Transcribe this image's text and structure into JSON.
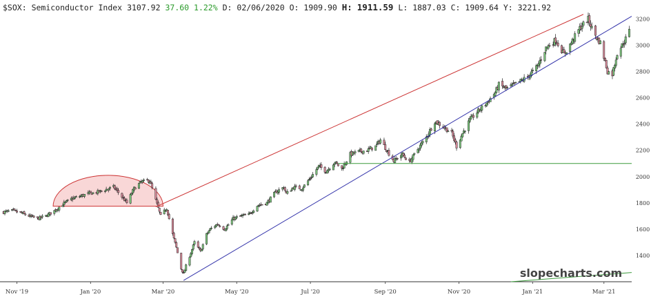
{
  "header": {
    "symbol": "$SOX:",
    "name": "Semiconductor Index",
    "last": "3107.92",
    "change": "37.60",
    "change_pct": "1.22%",
    "date_label": "D:",
    "date": "02/06/2020",
    "open_label": "O:",
    "open": "1909.90",
    "high_label": "H:",
    "high": "1911.59",
    "low_label": "L:",
    "low": "1887.03",
    "close_label": "C:",
    "close": "1909.64",
    "y_label": "Y:",
    "y_value": "3221.92"
  },
  "watermark": "slopecharts.com",
  "colors": {
    "up_candle": "#7ec87e",
    "down_candle": "#d98a9a",
    "upper_trend": "#cc3333",
    "lower_trend": "#3333aa",
    "support": "#3a9a3a",
    "ellipse_fill": "#f7c9c9",
    "ellipse_stroke": "#cc3333"
  },
  "chart_data": {
    "type": "candlestick",
    "x_range": [
      "2019-10-18",
      "2021-03-24"
    ],
    "ylim": [
      1200,
      3260
    ],
    "y_ticks": [
      1400,
      1600,
      1800,
      2000,
      2200,
      2400,
      2600,
      2800,
      3000,
      3200
    ],
    "x_ticks": [
      {
        "label": "Nov '19",
        "date": "2019-11-01"
      },
      {
        "label": "Jan '20",
        "date": "2020-01-01"
      },
      {
        "label": "Mar '20",
        "date": "2020-03-01"
      },
      {
        "label": "May '20",
        "date": "2020-05-01"
      },
      {
        "label": "Jul '20",
        "date": "2020-07-01"
      },
      {
        "label": "Sep '20",
        "date": "2020-09-01"
      },
      {
        "label": "Nov '20",
        "date": "2020-11-01"
      },
      {
        "label": "Jan '21",
        "date": "2021-01-01"
      },
      {
        "label": "Mar '21",
        "date": "2021-03-01"
      }
    ],
    "close_path": [
      [
        "2019-10-21",
        1730
      ],
      [
        "2019-10-28",
        1740
      ],
      [
        "2019-11-04",
        1725
      ],
      [
        "2019-11-11",
        1700
      ],
      [
        "2019-11-18",
        1680
      ],
      [
        "2019-11-25",
        1700
      ],
      [
        "2019-12-02",
        1740
      ],
      [
        "2019-12-09",
        1790
      ],
      [
        "2019-12-16",
        1830
      ],
      [
        "2019-12-23",
        1850
      ],
      [
        "2019-12-30",
        1870
      ],
      [
        "2020-01-06",
        1880
      ],
      [
        "2020-01-13",
        1900
      ],
      [
        "2020-01-20",
        1920
      ],
      [
        "2020-01-24",
        1880
      ],
      [
        "2020-01-31",
        1800
      ],
      [
        "2020-02-06",
        1910
      ],
      [
        "2020-02-12",
        1960
      ],
      [
        "2020-02-19",
        1970
      ],
      [
        "2020-02-24",
        1820
      ],
      [
        "2020-02-28",
        1700
      ],
      [
        "2020-03-04",
        1760
      ],
      [
        "2020-03-09",
        1560
      ],
      [
        "2020-03-12",
        1460
      ],
      [
        "2020-03-16",
        1300
      ],
      [
        "2020-03-18",
        1260
      ],
      [
        "2020-03-20",
        1320
      ],
      [
        "2020-03-24",
        1420
      ],
      [
        "2020-03-27",
        1500
      ],
      [
        "2020-04-01",
        1430
      ],
      [
        "2020-04-06",
        1560
      ],
      [
        "2020-04-09",
        1600
      ],
      [
        "2020-04-15",
        1640
      ],
      [
        "2020-04-21",
        1600
      ],
      [
        "2020-04-28",
        1680
      ],
      [
        "2020-05-04",
        1700
      ],
      [
        "2020-05-11",
        1710
      ],
      [
        "2020-05-18",
        1780
      ],
      [
        "2020-05-26",
        1800
      ],
      [
        "2020-06-02",
        1880
      ],
      [
        "2020-06-09",
        1920
      ],
      [
        "2020-06-11",
        1870
      ],
      [
        "2020-06-17",
        1920
      ],
      [
        "2020-06-24",
        1910
      ],
      [
        "2020-07-01",
        1990
      ],
      [
        "2020-07-08",
        2080
      ],
      [
        "2020-07-14",
        2040
      ],
      [
        "2020-07-21",
        2110
      ],
      [
        "2020-07-27",
        2060
      ],
      [
        "2020-08-03",
        2170
      ],
      [
        "2020-08-10",
        2190
      ],
      [
        "2020-08-17",
        2200
      ],
      [
        "2020-08-24",
        2230
      ],
      [
        "2020-08-28",
        2280
      ],
      [
        "2020-09-03",
        2190
      ],
      [
        "2020-09-08",
        2120
      ],
      [
        "2020-09-15",
        2170
      ],
      [
        "2020-09-21",
        2110
      ],
      [
        "2020-09-28",
        2210
      ],
      [
        "2020-10-05",
        2300
      ],
      [
        "2020-10-12",
        2420
      ],
      [
        "2020-10-19",
        2380
      ],
      [
        "2020-10-26",
        2330
      ],
      [
        "2020-10-30",
        2230
      ],
      [
        "2020-11-04",
        2330
      ],
      [
        "2020-11-10",
        2430
      ],
      [
        "2020-11-17",
        2500
      ],
      [
        "2020-11-24",
        2560
      ],
      [
        "2020-12-01",
        2640
      ],
      [
        "2020-12-04",
        2700
      ],
      [
        "2020-12-10",
        2670
      ],
      [
        "2020-12-17",
        2700
      ],
      [
        "2020-12-28",
        2760
      ],
      [
        "2021-01-05",
        2840
      ],
      [
        "2021-01-12",
        2980
      ],
      [
        "2021-01-20",
        3040
      ],
      [
        "2021-01-27",
        2930
      ],
      [
        "2021-02-02",
        3020
      ],
      [
        "2021-02-09",
        3130
      ],
      [
        "2021-02-16",
        3200
      ],
      [
        "2021-02-19",
        3130
      ],
      [
        "2021-02-24",
        3040
      ],
      [
        "2021-02-26",
        3020
      ],
      [
        "2021-03-04",
        2800
      ],
      [
        "2021-03-08",
        2780
      ],
      [
        "2021-03-12",
        2940
      ],
      [
        "2021-03-18",
        3030
      ],
      [
        "2021-03-22",
        3107.92
      ]
    ],
    "annotations": [
      {
        "type": "line",
        "name": "upper-trendline",
        "from": [
          "2020-02-24",
          1770
        ],
        "to": [
          "2021-02-12",
          3235
        ]
      },
      {
        "type": "line",
        "name": "lower-trendline",
        "from": [
          "2020-03-18",
          1210
        ],
        "to": [
          "2021-03-24",
          3220
        ]
      },
      {
        "type": "hline",
        "name": "support-line",
        "y": 2100,
        "from": "2020-07-24",
        "to": "2021-03-24"
      },
      {
        "type": "line",
        "name": "lower-right-line",
        "from": [
          "2020-12-14",
          1200
        ],
        "to": [
          "2021-03-24",
          1270
        ]
      },
      {
        "type": "half-ellipse",
        "name": "rounded-top",
        "from": "2019-12-01",
        "to": "2020-03-01",
        "base": 1775,
        "peak": 2010
      }
    ]
  }
}
